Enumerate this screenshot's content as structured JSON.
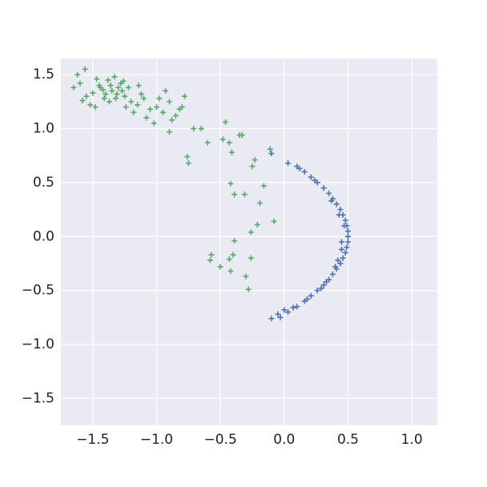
{
  "chart_data": {
    "type": "scatter",
    "xlim": [
      -1.75,
      1.2
    ],
    "ylim": [
      -1.75,
      1.65
    ],
    "xticks": [
      {
        "value": -1.5,
        "label": "−1.5"
      },
      {
        "value": -1,
        "label": "−1.0"
      },
      {
        "value": -0.5,
        "label": "−0.5"
      },
      {
        "value": 0,
        "label": "0.0"
      },
      0.5,
      {
        "value": 1,
        "label": "1.0"
      }
    ],
    "yticks": [
      {
        "value": -1.5,
        "label": "−1.5"
      },
      {
        "value": -1,
        "label": "−1.0"
      },
      {
        "value": -0.5,
        "label": "−0.5"
      },
      {
        "value": 0,
        "label": "0.0"
      },
      0.5,
      {
        "value": 1,
        "label": "1.0"
      },
      {
        "value": 1.5,
        "label": "1.5"
      }
    ],
    "grid": true,
    "marker": "+",
    "series": [
      {
        "color": "#4c72b0",
        "x": [
          0.1,
          0.16,
          0.21,
          0.26,
          0.31,
          0.35,
          0.38,
          0.41,
          0.44,
          0.46,
          0.48,
          0.49,
          0.5,
          0.5,
          0.5,
          0.49,
          0.48,
          0.46,
          0.44,
          0.41,
          0.38,
          0.35,
          0.31,
          0.26,
          0.21,
          0.16,
          0.1,
          0.03,
          -0.03,
          0.47,
          0.45,
          0.43,
          0.4,
          0.33,
          -0.1,
          0.03,
          -0.1,
          -0.05,
          0.0,
          0.12,
          0.24,
          0.37,
          0.45,
          0.42,
          0.29,
          0.18,
          0.07
        ],
        "values": [
          0.65,
          0.6,
          0.55,
          0.5,
          0.45,
          0.4,
          0.35,
          0.3,
          0.25,
          0.2,
          0.15,
          0.1,
          0.05,
          0.0,
          -0.05,
          -0.1,
          -0.15,
          -0.2,
          -0.25,
          -0.3,
          -0.35,
          -0.4,
          -0.45,
          -0.5,
          -0.55,
          -0.6,
          -0.65,
          -0.7,
          -0.75,
          0.1,
          -0.05,
          0.2,
          -0.28,
          -0.42,
          0.77,
          0.68,
          -0.76,
          -0.72,
          -0.68,
          0.63,
          0.52,
          0.33,
          -0.12,
          -0.22,
          -0.48,
          -0.58,
          -0.66
        ]
      },
      {
        "color": "#55a868",
        "x": [
          -0.46,
          -0.35,
          -0.33,
          -0.48,
          -0.43,
          -0.41,
          -0.23,
          -0.25,
          -0.76,
          -0.75,
          -0.42,
          -0.39,
          -0.31,
          -0.11,
          -0.16,
          -0.19,
          -0.08,
          -0.21,
          -0.26,
          -0.39,
          -0.57,
          -0.58,
          -0.5,
          -0.43,
          -0.4,
          -0.42,
          -0.26,
          -0.3,
          -0.28,
          -0.6,
          -0.65,
          -0.71,
          -0.9,
          -1.35,
          -1.3,
          -1.4,
          -1.45,
          -1.25,
          -1.38,
          -1.32,
          -1.28,
          -1.42,
          -1.5,
          -1.55,
          -1.2,
          -1.15,
          -1.1,
          -1.05,
          -1.0,
          -0.95,
          -0.9,
          -0.85,
          -0.8,
          -1.33,
          -1.37,
          -1.27,
          -1.47,
          -1.6,
          -1.62,
          -1.52,
          -1.22,
          -1.18,
          -1.12,
          -1.08,
          -0.98,
          -0.88,
          -0.82,
          -1.36,
          -1.31,
          -1.41,
          -1.26,
          -1.44,
          -1.56,
          -1.65,
          -1.48,
          -1.58,
          -1.02,
          -0.93,
          -0.78,
          -1.14,
          -1.24
        ],
        "values": [
          1.06,
          0.94,
          0.94,
          0.9,
          0.87,
          0.78,
          0.71,
          0.65,
          0.74,
          0.68,
          0.49,
          0.39,
          0.39,
          0.81,
          0.47,
          0.31,
          0.14,
          0.11,
          0.04,
          -0.04,
          -0.17,
          -0.22,
          -0.28,
          -0.21,
          -0.17,
          -0.32,
          -0.2,
          -0.37,
          -0.49,
          0.87,
          1.0,
          1.0,
          0.97,
          1.35,
          1.38,
          1.32,
          1.4,
          1.3,
          1.45,
          1.28,
          1.42,
          1.36,
          1.33,
          1.3,
          1.25,
          1.22,
          1.28,
          1.18,
          1.2,
          1.15,
          1.25,
          1.12,
          1.2,
          1.48,
          1.25,
          1.35,
          1.46,
          1.42,
          1.5,
          1.22,
          1.38,
          1.15,
          1.32,
          1.1,
          1.28,
          1.08,
          1.18,
          1.4,
          1.32,
          1.28,
          1.44,
          1.38,
          1.55,
          1.38,
          1.2,
          1.26,
          1.05,
          1.35,
          1.3,
          1.4,
          1.2
        ]
      }
    ]
  }
}
